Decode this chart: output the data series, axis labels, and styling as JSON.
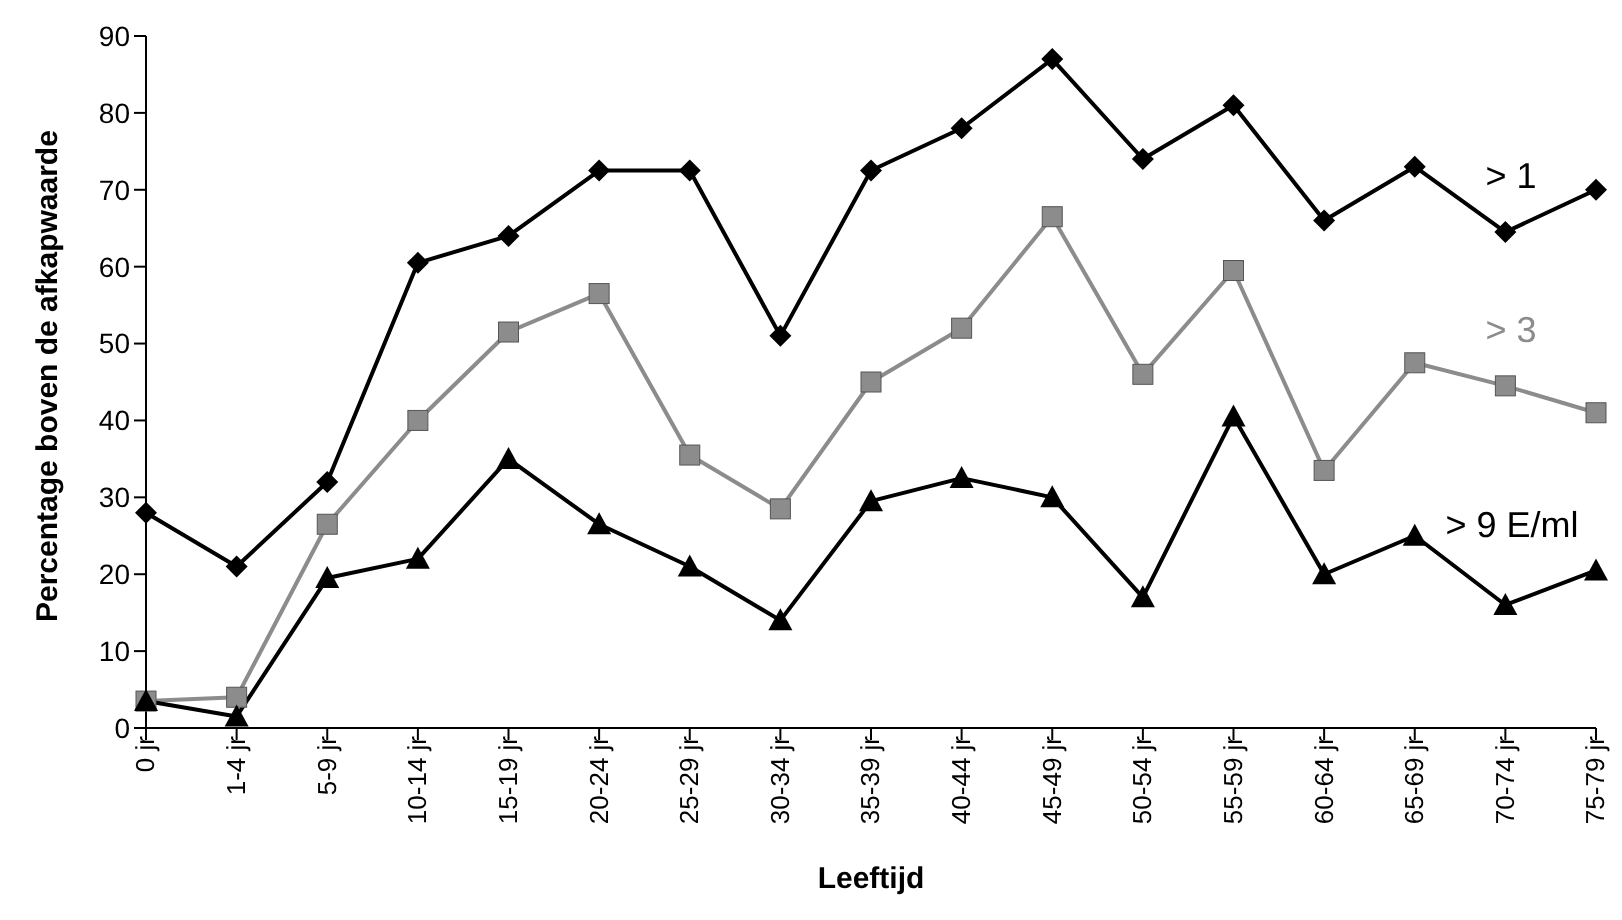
{
  "chart_data": {
    "type": "line",
    "xlabel": "Leeftijd",
    "ylabel": "Percentage boven de afkapwaarde",
    "categories": [
      "0 jr",
      "1-4 jr",
      "5-9 jr",
      "10-14 jr",
      "15-19 jr",
      "20-24 jr",
      "25-29 jr",
      "30-34 jr",
      "35-39 jr",
      "40-44 jr",
      "45-49 jr",
      "50-54 jr",
      "55-59 jr",
      "60-64 jr",
      "65-69 jr",
      "70-74 jr",
      "75-79 jr"
    ],
    "series": [
      {
        "name": "> 1",
        "color": "#000000",
        "marker": "diamond",
        "values": [
          28,
          21,
          32,
          60.5,
          64,
          72.5,
          72.5,
          51,
          72.5,
          78,
          87,
          74,
          81,
          66,
          73,
          64.5,
          70
        ]
      },
      {
        "name": "> 3",
        "color": "#8c8c8c",
        "marker": "square",
        "values": [
          3.5,
          4,
          26.5,
          40,
          51.5,
          56.5,
          35.5,
          28.5,
          45,
          52,
          66.5,
          46,
          59.5,
          33.5,
          47.5,
          44.5,
          41
        ]
      },
      {
        "name": "> 9 E/ml",
        "color": "#000000",
        "marker": "triangle",
        "values": [
          3.5,
          1.5,
          19.5,
          22,
          35,
          26.5,
          21,
          14,
          29.5,
          32.5,
          30,
          17,
          40.5,
          20,
          25,
          16,
          20.5
        ]
      }
    ],
    "ylim": [
      0,
      90
    ],
    "yticks": [
      0,
      10,
      20,
      30,
      40,
      50,
      60,
      70,
      80,
      90
    ],
    "grid": false,
    "legend": false
  }
}
